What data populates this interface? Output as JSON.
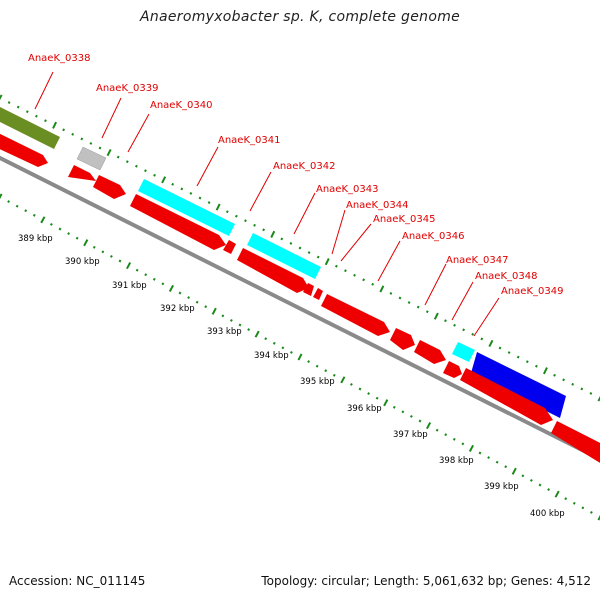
{
  "title": "Anaeromyxobacter sp. K, complete genome",
  "footer": {
    "accession": "Accession: NC_011145",
    "stats": "Topology: circular; Length: 5,061,632 bp; Genes: 4,512"
  },
  "colors": {
    "cds": "#ee0000",
    "olive": "#6b8e23",
    "cyan": "#00ffff",
    "blue": "#0000ee",
    "grey": "#bdbdbd",
    "backbone": "#888888",
    "ticks": "#1a8a1a",
    "label": "#e00000"
  },
  "gene_labels": [
    "AnaeK_0338",
    "AnaeK_0339",
    "AnaeK_0340",
    "AnaeK_0341",
    "AnaeK_0342",
    "AnaeK_0343",
    "AnaeK_0344",
    "AnaeK_0345",
    "AnaeK_0346",
    "AnaeK_0347",
    "AnaeK_0348",
    "AnaeK_0349"
  ],
  "scale_labels": [
    "389 kbp",
    "390 kbp",
    "391 kbp",
    "392 kbp",
    "393 kbp",
    "394 kbp",
    "395 kbp",
    "396 kbp",
    "397 kbp",
    "398 kbp",
    "399 kbp",
    "400 kbp"
  ]
}
